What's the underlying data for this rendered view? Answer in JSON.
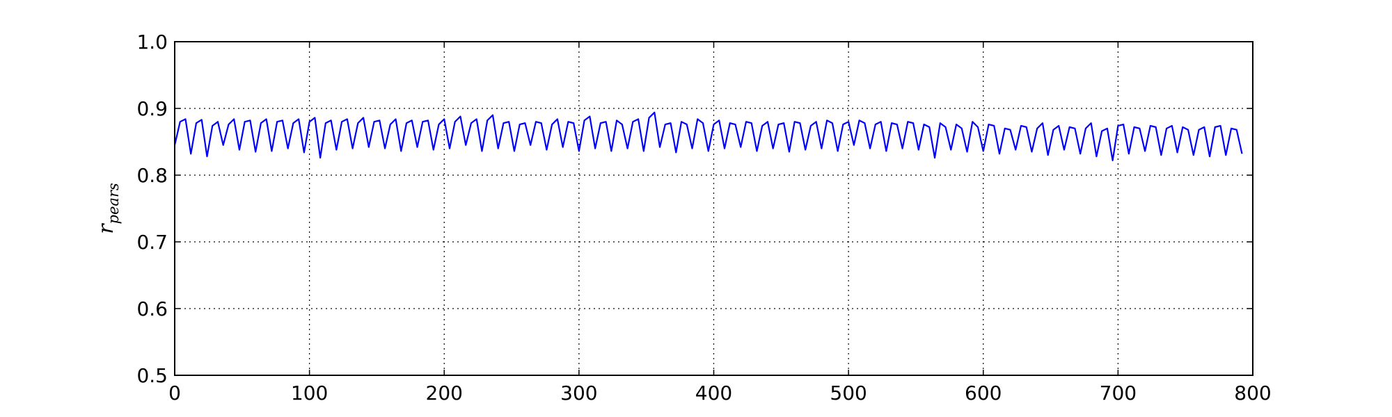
{
  "chart_data": {
    "type": "line",
    "ylabel": {
      "main": "r",
      "subscript": "pears"
    },
    "xlim": [
      0,
      800
    ],
    "ylim": [
      0.5,
      1.0
    ],
    "xticks": [
      0,
      100,
      200,
      300,
      400,
      500,
      600,
      700,
      800
    ],
    "yticks": [
      0.5,
      0.6,
      0.7,
      0.8,
      0.9,
      {
        "value": 1,
        "label": "1.0"
      }
    ],
    "grid": true,
    "x": [
      0,
      4,
      8,
      12,
      16,
      20,
      24,
      28,
      32,
      36,
      40,
      44,
      48,
      52,
      56,
      60,
      64,
      68,
      72,
      76,
      80,
      84,
      88,
      92,
      96,
      100,
      104,
      108,
      112,
      116,
      120,
      124,
      128,
      132,
      136,
      140,
      144,
      148,
      152,
      156,
      160,
      164,
      168,
      172,
      176,
      180,
      184,
      188,
      192,
      196,
      200,
      204,
      208,
      212,
      216,
      220,
      224,
      228,
      232,
      236,
      240,
      244,
      248,
      252,
      256,
      260,
      264,
      268,
      272,
      276,
      280,
      284,
      288,
      292,
      296,
      300,
      304,
      308,
      312,
      316,
      320,
      324,
      328,
      332,
      336,
      340,
      344,
      348,
      352,
      356,
      360,
      364,
      368,
      372,
      376,
      380,
      384,
      388,
      392,
      396,
      400,
      404,
      408,
      412,
      416,
      420,
      424,
      428,
      432,
      436,
      440,
      444,
      448,
      452,
      456,
      460,
      464,
      468,
      472,
      476,
      480,
      484,
      488,
      492,
      496,
      500,
      504,
      508,
      512,
      516,
      520,
      524,
      528,
      532,
      536,
      540,
      544,
      548,
      552,
      556,
      560,
      564,
      568,
      572,
      576,
      580,
      584,
      588,
      592,
      596,
      600,
      604,
      608,
      612,
      616,
      620,
      624,
      628,
      632,
      636,
      640,
      644,
      648,
      652,
      656,
      660,
      664,
      668,
      672,
      676,
      680,
      684,
      688,
      692,
      696,
      700,
      704,
      708,
      712,
      716,
      720,
      724,
      728,
      732,
      736,
      740,
      744,
      748,
      752,
      756,
      760,
      764,
      768,
      772,
      776,
      780,
      784,
      788,
      792
    ],
    "series": [
      {
        "color": "#0000ff",
        "values": [
          0.845,
          0.88,
          0.884,
          0.832,
          0.878,
          0.883,
          0.828,
          0.874,
          0.88,
          0.845,
          0.876,
          0.884,
          0.838,
          0.88,
          0.882,
          0.835,
          0.878,
          0.884,
          0.836,
          0.88,
          0.882,
          0.84,
          0.878,
          0.884,
          0.834,
          0.88,
          0.886,
          0.826,
          0.878,
          0.882,
          0.838,
          0.88,
          0.884,
          0.84,
          0.878,
          0.886,
          0.842,
          0.88,
          0.882,
          0.84,
          0.876,
          0.884,
          0.836,
          0.878,
          0.882,
          0.842,
          0.88,
          0.882,
          0.838,
          0.876,
          0.884,
          0.84,
          0.88,
          0.888,
          0.845,
          0.878,
          0.884,
          0.836,
          0.882,
          0.89,
          0.84,
          0.878,
          0.88,
          0.836,
          0.876,
          0.878,
          0.845,
          0.88,
          0.878,
          0.838,
          0.876,
          0.884,
          0.842,
          0.88,
          0.878,
          0.836,
          0.882,
          0.888,
          0.84,
          0.878,
          0.88,
          0.836,
          0.882,
          0.876,
          0.84,
          0.88,
          0.884,
          0.836,
          0.886,
          0.894,
          0.842,
          0.876,
          0.878,
          0.834,
          0.88,
          0.876,
          0.84,
          0.884,
          0.878,
          0.836,
          0.876,
          0.882,
          0.84,
          0.878,
          0.876,
          0.842,
          0.88,
          0.878,
          0.836,
          0.874,
          0.88,
          0.84,
          0.876,
          0.878,
          0.835,
          0.88,
          0.878,
          0.838,
          0.874,
          0.88,
          0.84,
          0.882,
          0.878,
          0.836,
          0.876,
          0.88,
          0.845,
          0.882,
          0.878,
          0.84,
          0.876,
          0.88,
          0.836,
          0.878,
          0.876,
          0.84,
          0.88,
          0.878,
          0.838,
          0.876,
          0.872,
          0.826,
          0.878,
          0.872,
          0.838,
          0.876,
          0.87,
          0.835,
          0.88,
          0.872,
          0.836,
          0.876,
          0.874,
          0.832,
          0.87,
          0.868,
          0.838,
          0.874,
          0.872,
          0.835,
          0.87,
          0.878,
          0.83,
          0.868,
          0.874,
          0.838,
          0.872,
          0.87,
          0.832,
          0.87,
          0.878,
          0.828,
          0.866,
          0.87,
          0.822,
          0.874,
          0.876,
          0.832,
          0.872,
          0.87,
          0.836,
          0.874,
          0.872,
          0.83,
          0.87,
          0.874,
          0.834,
          0.872,
          0.868,
          0.83,
          0.868,
          0.872,
          0.828,
          0.872,
          0.874,
          0.83,
          0.87,
          0.868,
          0.832
        ]
      }
    ]
  }
}
